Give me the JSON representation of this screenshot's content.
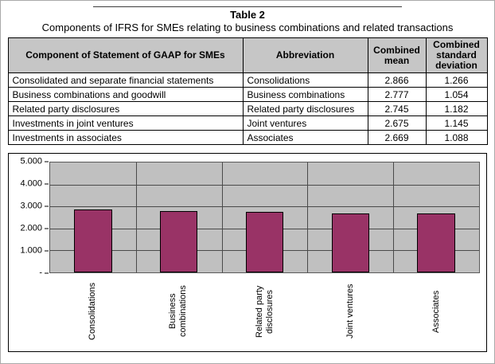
{
  "title_block": {
    "table_label": "Table 2",
    "caption": "Components of IFRS for SMEs relating to business combinations and related transactions"
  },
  "table": {
    "headers": [
      "Component of Statement of GAAP for SMEs",
      "Abbreviation",
      "Combined mean",
      "Combined standard deviation"
    ],
    "rows": [
      [
        "Consolidated and separate financial statements",
        "Consolidations",
        "2.866",
        "1.266"
      ],
      [
        "Business combinations and goodwill",
        "Business combinations",
        "2.777",
        "1.054"
      ],
      [
        "Related party disclosures",
        "Related party disclosures",
        "2.745",
        "1.182"
      ],
      [
        "Investments in joint ventures",
        "Joint ventures",
        "2.675",
        "1.145"
      ],
      [
        "Investments in associates",
        "Associates",
        "2.669",
        "1.088"
      ]
    ]
  },
  "chart_data": {
    "type": "bar",
    "categories": [
      "Consolidations",
      "Business combinations",
      "Related party disclosures",
      "Joint ventures",
      "Associates"
    ],
    "values": [
      2.866,
      2.777,
      2.745,
      2.675,
      2.669
    ],
    "title": "",
    "xlabel": "",
    "ylabel": "",
    "ylim": [
      0,
      5
    ],
    "ytick_labels": [
      "5.000",
      "4.000",
      "3.000",
      "2.000",
      "1.000",
      "-"
    ],
    "grid": true,
    "legend_position": "none",
    "bar_color": "#993366",
    "bar_border": "#000000",
    "plot_bg": "#c0c0c0"
  }
}
